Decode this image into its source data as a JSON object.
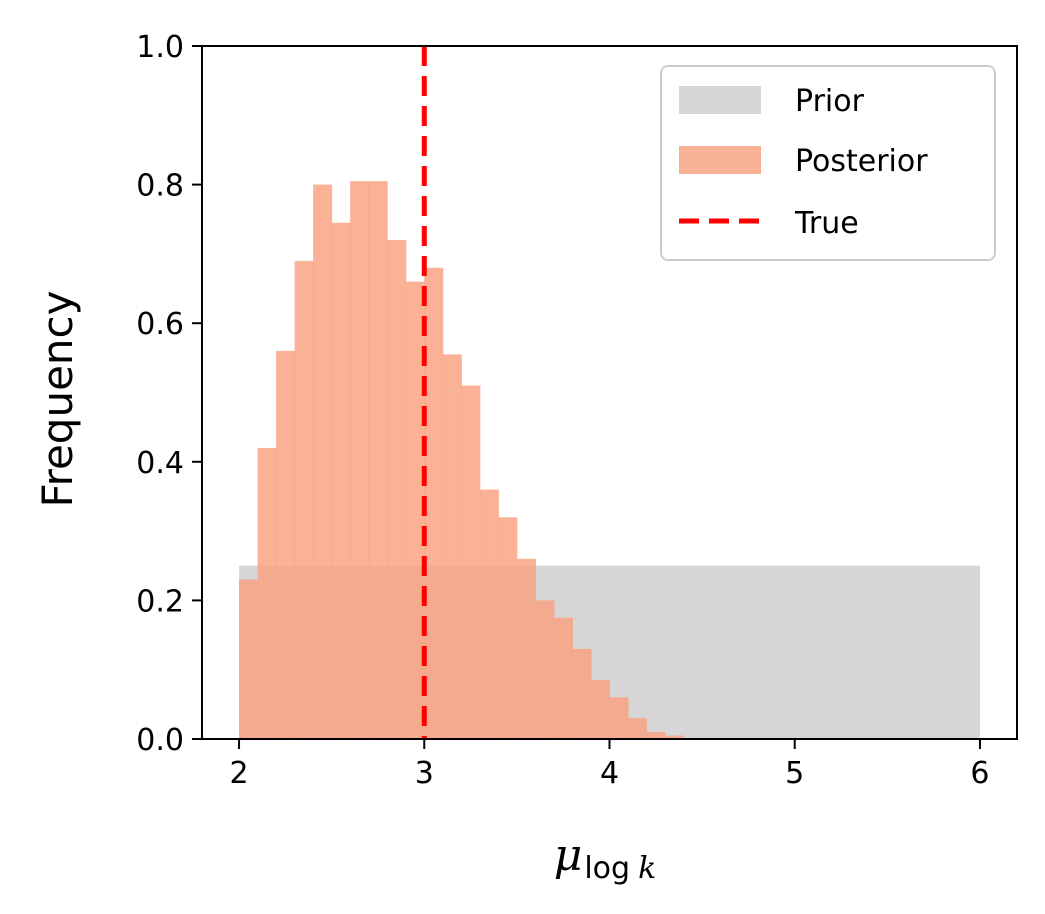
{
  "chart_data": {
    "type": "histogram",
    "xlabel": {
      "symbol": "μ",
      "subscript_fn": "log",
      "subscript_var": "k"
    },
    "ylabel": "Frequency",
    "xlim": [
      1.8,
      6.2
    ],
    "ylim": [
      0.0,
      1.0
    ],
    "xticks": [
      "2",
      "3",
      "4",
      "5",
      "6"
    ],
    "yticks": [
      "0.0",
      "0.2",
      "0.4",
      "0.6",
      "0.8",
      "1.0"
    ],
    "legend_position": "top-right",
    "colors": {
      "prior": "#d6d6d6",
      "posterior": "#f9a07e",
      "overlap": "#f5ac8d",
      "true": "#ff0000"
    },
    "series": [
      {
        "name": "Prior",
        "kind": "histogram",
        "bins": [
          [
            2.0,
            6.0
          ]
        ],
        "values": [
          0.25
        ]
      },
      {
        "name": "Posterior",
        "kind": "histogram",
        "bin_start": 2.0,
        "bin_width": 0.1,
        "values": [
          0.23,
          0.42,
          0.56,
          0.69,
          0.8,
          0.745,
          0.805,
          0.805,
          0.72,
          0.66,
          0.68,
          0.555,
          0.51,
          0.36,
          0.32,
          0.26,
          0.2,
          0.175,
          0.13,
          0.085,
          0.06,
          0.03,
          0.01,
          0.005
        ]
      },
      {
        "name": "True",
        "kind": "vline",
        "x": 3.0
      }
    ]
  }
}
